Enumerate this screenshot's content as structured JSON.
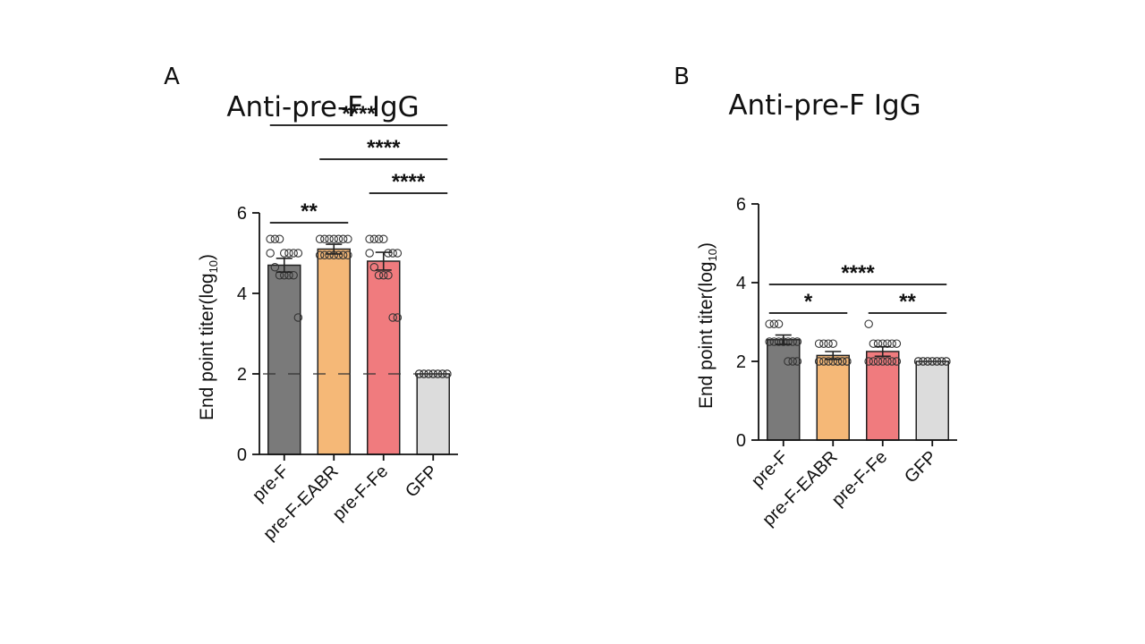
{
  "chart_data": [
    {
      "type": "bar",
      "panel": "A",
      "title": "Anti-pre-F IgG",
      "ylabel": "End point titer",
      "ylabel_paren_open": "(",
      "ylabel_log": "log",
      "ylabel_sub": "10",
      "ylabel_paren_close": ")",
      "ylim": [
        0,
        6
      ],
      "yticks": [
        0,
        2,
        4,
        6
      ],
      "categories": [
        "pre-F",
        "pre-F-EABR",
        "pre-F-Fe",
        "GFP"
      ],
      "values": [
        4.7,
        5.1,
        4.8,
        2.0
      ],
      "errors": [
        0.17,
        0.12,
        0.22,
        0.0
      ],
      "colors": [
        "#7a7a7a",
        "#f5b877",
        "#f07b7e",
        "#dcdcdc"
      ],
      "points": [
        [
          5.35,
          5.35,
          5.35,
          5.0,
          5.0,
          5.0,
          5.0,
          5.0,
          4.65,
          4.45,
          4.45,
          4.45,
          4.45,
          3.4
        ],
        [
          5.35,
          5.35,
          5.35,
          5.35,
          5.35,
          5.35,
          5.35,
          4.95,
          4.95,
          4.95,
          4.95,
          4.95,
          4.95,
          4.95
        ],
        [
          5.35,
          5.35,
          5.35,
          5.35,
          5.0,
          5.0,
          5.0,
          5.0,
          4.65,
          4.45,
          4.45,
          4.45,
          3.4,
          3.4
        ],
        [
          2.0,
          2.0,
          2.0,
          2.0,
          2.0,
          2.0,
          2.0,
          2.0,
          2.0,
          2.0,
          2.0,
          2.0,
          2.0,
          2.0
        ]
      ],
      "limit_of_detection": 2,
      "significance": [
        {
          "from": 0,
          "to": 1,
          "label": "**"
        },
        {
          "from": 2,
          "to": 3,
          "label": "****"
        },
        {
          "from": 1,
          "to": 3,
          "label": "****"
        },
        {
          "from": 0,
          "to": 3,
          "label": "****"
        }
      ]
    },
    {
      "type": "bar",
      "panel": "B",
      "title": "Anti-pre-F IgG",
      "ylabel": "End point titer",
      "ylabel_paren_open": "(",
      "ylabel_log": "log",
      "ylabel_sub": "10",
      "ylabel_paren_close": ")",
      "ylim": [
        0,
        6
      ],
      "yticks": [
        0,
        2,
        4,
        6
      ],
      "categories": [
        "pre-F",
        "pre-F-EABR",
        "pre-F-Fe",
        "GFP"
      ],
      "values": [
        2.55,
        2.15,
        2.25,
        2.0
      ],
      "errors": [
        0.12,
        0.1,
        0.12,
        0.0
      ],
      "colors": [
        "#7a7a7a",
        "#f5b877",
        "#f07b7e",
        "#dcdcdc"
      ],
      "points": [
        [
          2.95,
          2.95,
          2.95,
          2.5,
          2.5,
          2.5,
          2.5,
          2.5,
          2.5,
          2.5,
          2.5,
          2.0,
          2.0,
          2.0
        ],
        [
          2.45,
          2.45,
          2.45,
          2.45,
          2.0,
          2.0,
          2.0,
          2.0,
          2.0,
          2.0,
          2.0,
          2.0,
          2.0,
          2.0
        ],
        [
          2.95,
          2.45,
          2.45,
          2.45,
          2.45,
          2.45,
          2.45,
          2.0,
          2.0,
          2.0,
          2.0,
          2.0,
          2.0,
          2.0
        ],
        [
          2.0,
          2.0,
          2.0,
          2.0,
          2.0,
          2.0,
          2.0,
          2.0,
          2.0,
          2.0,
          2.0,
          2.0,
          2.0,
          2.0
        ]
      ],
      "significance": [
        {
          "from": 0,
          "to": 1,
          "label": "*"
        },
        {
          "from": 2,
          "to": 3,
          "label": "**"
        },
        {
          "from": 0,
          "to": 3,
          "label": "****"
        }
      ]
    }
  ]
}
